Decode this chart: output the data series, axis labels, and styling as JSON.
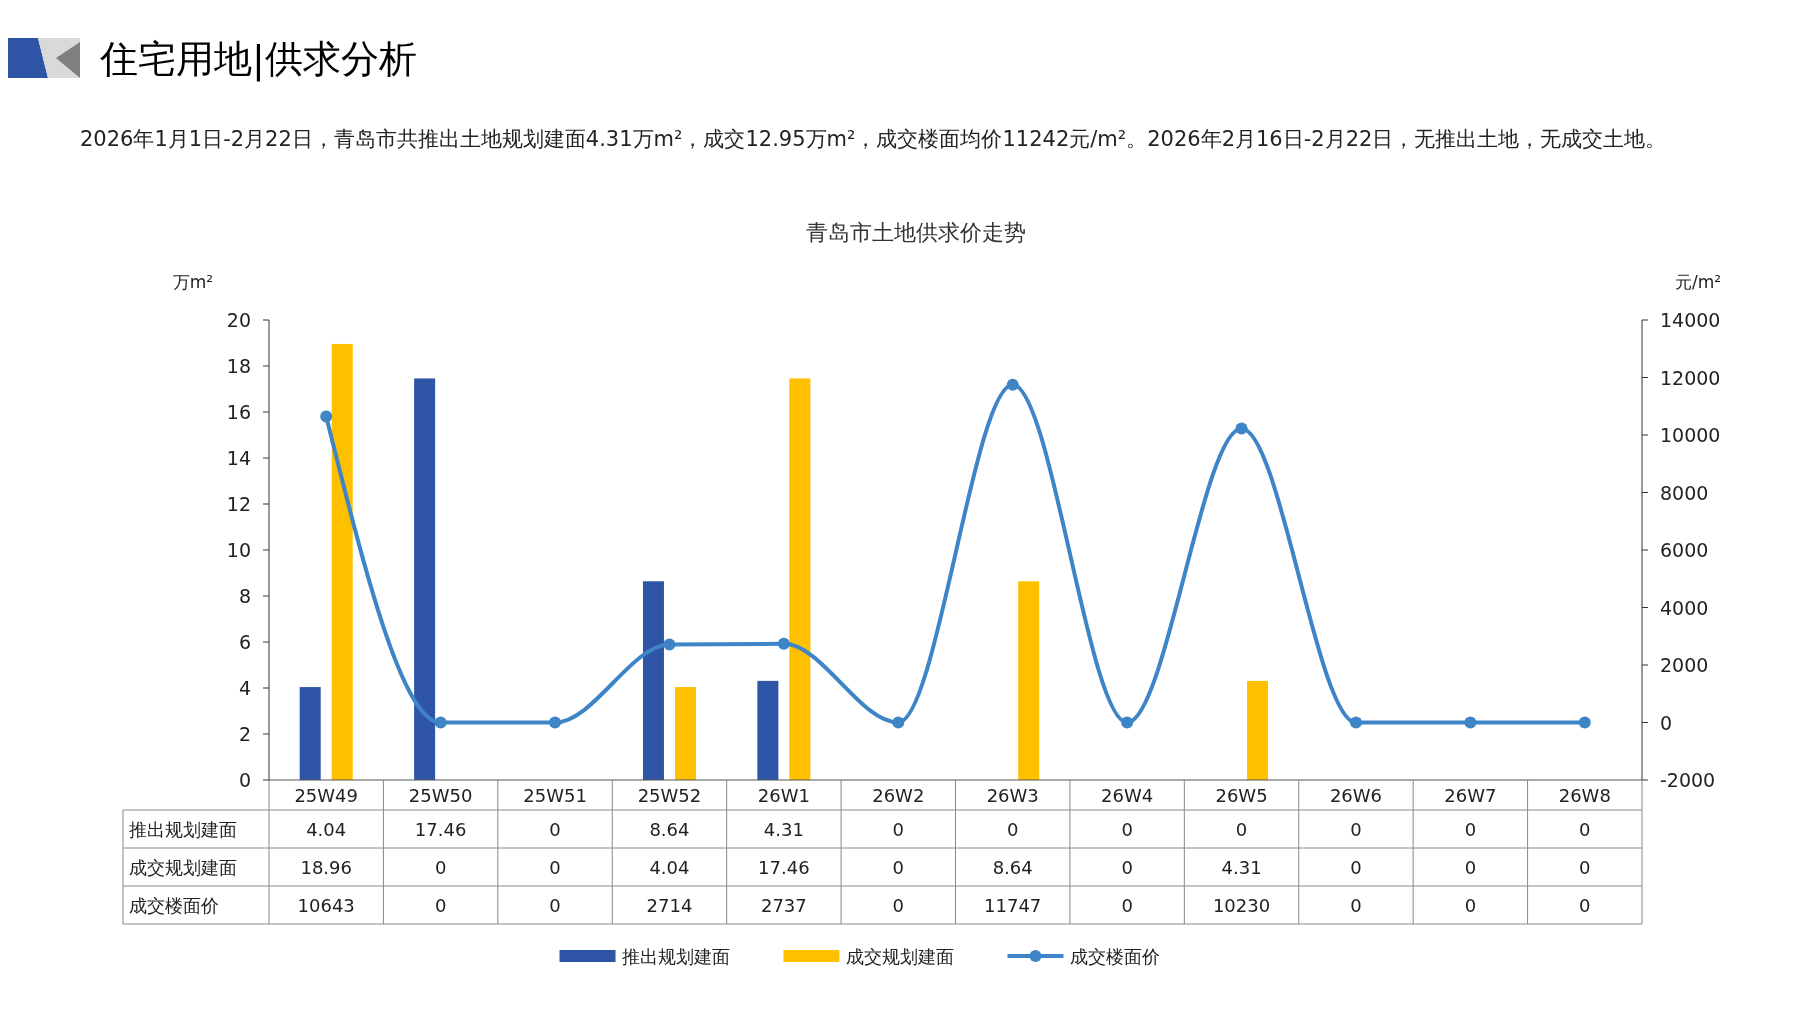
{
  "chart_data": {
    "type": "bar",
    "title": "青岛市土地供求价走势",
    "subtitle": "2026年1月1日-2月22日，青岛市共推出土地规划建面4.31万m²，成交12.95万m²，成交楼面均价11242元/m²。2026年2月16日-2月22日，无推出土地，无成交土地。",
    "annotations": [
      "住宅用地|供求分析"
    ],
    "ylabel": "万m²",
    "y2label": "元/m²",
    "categories": [
      "25W49",
      "25W50",
      "25W51",
      "25W52",
      "26W1",
      "26W2",
      "26W3",
      "26W4",
      "26W5",
      "26W6",
      "26W7",
      "26W8"
    ],
    "series": [
      {
        "name": "推出规划建面",
        "color": "#2e55a5",
        "values": [
          4.04,
          17.46,
          0,
          8.64,
          4.31,
          0,
          0,
          0,
          0,
          0,
          0,
          0
        ]
      },
      {
        "name": "成交规划建面",
        "color": "#ffc000",
        "values": [
          18.96,
          0,
          0,
          4.04,
          17.46,
          0,
          8.64,
          0,
          4.31,
          0,
          0,
          0
        ]
      },
      {
        "name": "成交楼面价",
        "type": "line",
        "axis": "y2",
        "color": "#3d85c6",
        "marker": "circle",
        "values": [
          10643,
          0,
          0,
          2714,
          2737,
          0,
          11747,
          0,
          10230,
          0,
          0,
          0
        ]
      }
    ],
    "ylim": [
      0,
      20
    ],
    "yticks": [
      0,
      2,
      4,
      6,
      8,
      10,
      12,
      14,
      16,
      18,
      20
    ],
    "y2lim": [
      -2000,
      14000
    ],
    "y2ticks": [
      -2000,
      0,
      2000,
      4000,
      6000,
      8000,
      10000,
      12000,
      14000
    ],
    "data_labels": true,
    "legend": "bottom",
    "grid": false
  }
}
